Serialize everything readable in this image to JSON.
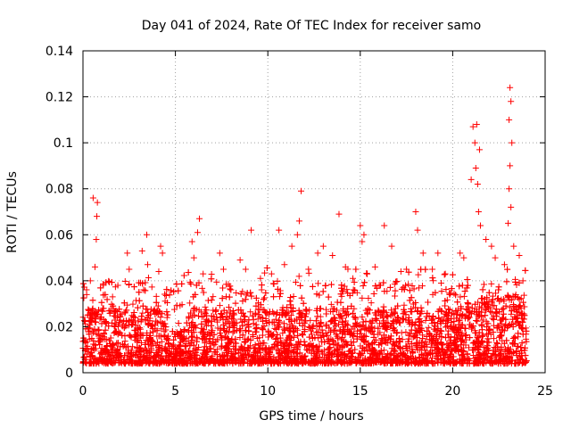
{
  "chart_data": {
    "type": "scatter",
    "title": "Day 041 of 2024, Rate Of TEC Index for receiver samo",
    "xlabel": "GPS time / hours",
    "ylabel": "ROTI / TECUs",
    "xlim": [
      0,
      25
    ],
    "ylim": [
      0,
      0.14
    ],
    "xticks": [
      0,
      5,
      10,
      15,
      20,
      25
    ],
    "xtick_labels": [
      "0",
      "5",
      "10",
      "15",
      "20",
      "25"
    ],
    "yticks": [
      0,
      0.02,
      0.04,
      0.06,
      0.08,
      0.1,
      0.12,
      0.14
    ],
    "ytick_labels": [
      "0",
      "0.02",
      "0.04",
      "0.06",
      "0.08",
      "0.1",
      "0.12",
      "0.14"
    ],
    "grid": true,
    "marker": "plus",
    "color": "#ff0000",
    "x_range_of_data": [
      0,
      24
    ],
    "series": [
      {
        "points": [
          [
            0.55,
            0.076
          ],
          [
            0.78,
            0.074
          ],
          [
            0.75,
            0.068
          ],
          [
            0.72,
            0.058
          ],
          [
            0.65,
            0.046
          ],
          [
            0.2,
            0.034
          ],
          [
            0.4,
            0.04
          ],
          [
            1.1,
            0.038
          ],
          [
            1.6,
            0.033
          ],
          [
            2.4,
            0.052
          ],
          [
            2.5,
            0.045
          ],
          [
            3.2,
            0.053
          ],
          [
            3.5,
            0.047
          ],
          [
            3.45,
            0.06
          ],
          [
            4.2,
            0.055
          ],
          [
            4.3,
            0.052
          ],
          [
            4.1,
            0.044
          ],
          [
            5.9,
            0.057
          ],
          [
            6.0,
            0.05
          ],
          [
            6.3,
            0.067
          ],
          [
            6.2,
            0.061
          ],
          [
            6.5,
            0.043
          ],
          [
            7.4,
            0.052
          ],
          [
            7.6,
            0.045
          ],
          [
            8.5,
            0.049
          ],
          [
            8.8,
            0.045
          ],
          [
            9.1,
            0.062
          ],
          [
            9.6,
            0.041
          ],
          [
            10.2,
            0.043
          ],
          [
            10.6,
            0.062
          ],
          [
            10.9,
            0.047
          ],
          [
            11.3,
            0.055
          ],
          [
            11.7,
            0.066
          ],
          [
            11.8,
            0.079
          ],
          [
            11.6,
            0.06
          ],
          [
            12.2,
            0.045
          ],
          [
            12.7,
            0.052
          ],
          [
            13.0,
            0.055
          ],
          [
            13.5,
            0.051
          ],
          [
            13.85,
            0.069
          ],
          [
            14.2,
            0.046
          ],
          [
            14.6,
            0.041
          ],
          [
            15.0,
            0.064
          ],
          [
            15.2,
            0.06
          ],
          [
            15.1,
            0.057
          ],
          [
            15.8,
            0.046
          ],
          [
            16.3,
            0.064
          ],
          [
            16.7,
            0.055
          ],
          [
            17.2,
            0.044
          ],
          [
            17.5,
            0.045
          ],
          [
            18.0,
            0.07
          ],
          [
            18.1,
            0.062
          ],
          [
            18.4,
            0.052
          ],
          [
            18.9,
            0.045
          ],
          [
            19.2,
            0.052
          ],
          [
            19.6,
            0.043
          ],
          [
            20.4,
            0.052
          ],
          [
            20.6,
            0.05
          ],
          [
            21.1,
            0.107
          ],
          [
            21.2,
            0.1
          ],
          [
            21.3,
            0.108
          ],
          [
            21.45,
            0.097
          ],
          [
            21.25,
            0.089
          ],
          [
            21.35,
            0.082
          ],
          [
            21.0,
            0.084
          ],
          [
            21.4,
            0.07
          ],
          [
            21.5,
            0.064
          ],
          [
            21.8,
            0.058
          ],
          [
            22.1,
            0.055
          ],
          [
            22.3,
            0.05
          ],
          [
            22.8,
            0.047
          ],
          [
            23.0,
            0.065
          ],
          [
            23.1,
            0.124
          ],
          [
            23.15,
            0.118
          ],
          [
            23.05,
            0.11
          ],
          [
            23.2,
            0.1
          ],
          [
            23.1,
            0.09
          ],
          [
            23.05,
            0.08
          ],
          [
            23.15,
            0.072
          ],
          [
            23.3,
            0.055
          ],
          [
            23.6,
            0.051
          ],
          [
            23.8,
            0.04
          ]
        ]
      }
    ]
  }
}
